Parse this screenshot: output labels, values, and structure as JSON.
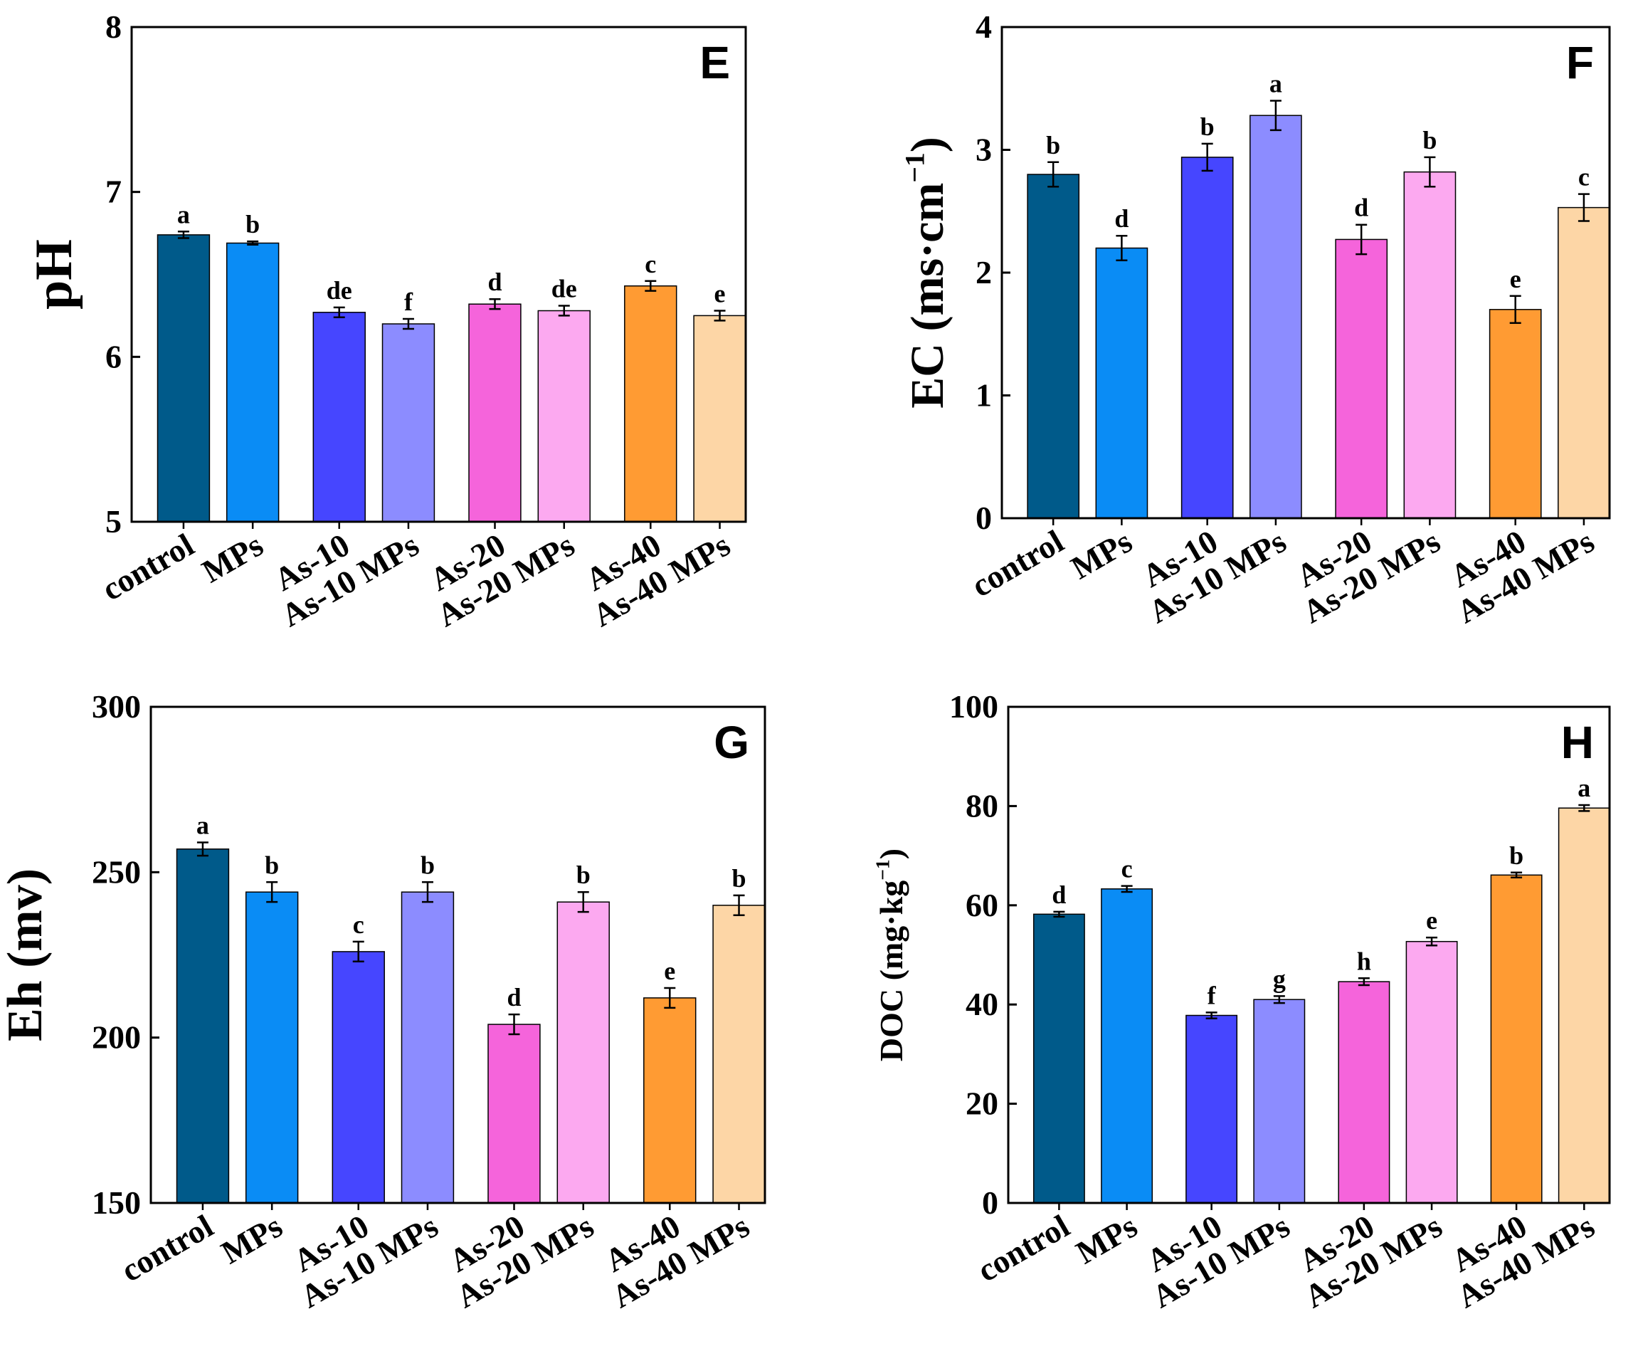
{
  "chart_data": [
    {
      "panel": "E",
      "type": "bar",
      "ylabel": "pH",
      "ylim": [
        5,
        8
      ],
      "yticks": [
        5,
        6,
        7,
        8
      ],
      "categories": [
        "control",
        "MPs",
        "As-10",
        "As-10 MPs",
        "As-20",
        "As-20 MPs",
        "As-40",
        "As-40 MPs"
      ],
      "values": [
        6.74,
        6.69,
        6.27,
        6.2,
        6.32,
        6.28,
        6.43,
        6.25
      ],
      "errors": [
        0.02,
        0.01,
        0.03,
        0.03,
        0.03,
        0.03,
        0.03,
        0.03
      ],
      "letters": [
        "a",
        "b",
        "de",
        "f",
        "d",
        "de",
        "c",
        "e"
      ]
    },
    {
      "panel": "F",
      "type": "bar",
      "ylabel": "EC (ms·cm",
      "ylabel_sup": "−1",
      "ylabel_close": ")",
      "ylim": [
        0,
        4
      ],
      "yticks": [
        0,
        1,
        2,
        3,
        4
      ],
      "categories": [
        "control",
        "MPs",
        "As-10",
        "As-10 MPs",
        "As-20",
        "As-20 MPs",
        "As-40",
        "As-40 MPs"
      ],
      "values": [
        2.8,
        2.2,
        2.94,
        3.28,
        2.27,
        2.82,
        1.7,
        2.53
      ],
      "errors": [
        0.1,
        0.1,
        0.11,
        0.12,
        0.12,
        0.12,
        0.11,
        0.11
      ],
      "letters": [
        "b",
        "d",
        "b",
        "a",
        "d",
        "b",
        "e",
        "c"
      ]
    },
    {
      "panel": "G",
      "type": "bar",
      "ylabel": "Eh (mv)",
      "ylim": [
        150,
        300
      ],
      "yticks": [
        150,
        200,
        250,
        300
      ],
      "categories": [
        "control",
        "MPs",
        "As-10",
        "As-10 MPs",
        "As-20",
        "As-20 MPs",
        "As-40",
        "As-40 MPs"
      ],
      "values": [
        257,
        244,
        226,
        244,
        204,
        241,
        212,
        240
      ],
      "errors": [
        2,
        3,
        3,
        3,
        3,
        3,
        3,
        3
      ],
      "letters": [
        "a",
        "b",
        "c",
        "b",
        "d",
        "b",
        "e",
        "b"
      ]
    },
    {
      "panel": "H",
      "type": "bar",
      "ylabel": "DOC (mg·kg",
      "ylabel_sup": "−1",
      "ylabel_close": ")",
      "ylim": [
        0,
        100
      ],
      "yticks": [
        0,
        20,
        40,
        60,
        80,
        100
      ],
      "categories": [
        "control",
        "MPs",
        "As-10",
        "As-10 MPs",
        "As-20",
        "As-20 MPs",
        "As-40",
        "As-40 MPs"
      ],
      "values": [
        58.2,
        63.3,
        37.8,
        41.0,
        44.6,
        52.7,
        66.1,
        79.6
      ],
      "errors": [
        0.5,
        0.6,
        0.6,
        0.7,
        0.7,
        0.8,
        0.5,
        0.6
      ],
      "letters": [
        "d",
        "c",
        "f",
        "g",
        "h",
        "e",
        "b",
        "a"
      ]
    }
  ],
  "colors": [
    "#005a8a",
    "#0a8cf5",
    "#4646ff",
    "#8c8cff",
    "#f564db",
    "#fca9f0",
    "#ff9b33",
    "#fdd6a6"
  ]
}
